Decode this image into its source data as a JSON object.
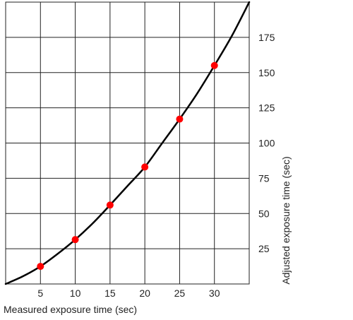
{
  "chart_data": {
    "type": "line",
    "title": "",
    "xlabel": "Measured exposure time (sec)",
    "ylabel": "Adjusted exposure time (sec)",
    "xlim": [
      0,
      35
    ],
    "ylim": [
      0,
      200
    ],
    "x_ticks": [
      5,
      10,
      15,
      20,
      25,
      30
    ],
    "y_ticks": [
      25,
      50,
      75,
      100,
      125,
      150,
      175
    ],
    "grid": true,
    "y_axis_position": "right",
    "series": [
      {
        "type": "curve",
        "color": "#000000",
        "x": [
          0,
          2.5,
          5,
          7.5,
          10,
          12.5,
          15,
          17.5,
          20,
          22.5,
          25,
          27.5,
          30,
          32.5,
          35
        ],
        "y": [
          0,
          5.5,
          12.5,
          21.5,
          31.5,
          43,
          56,
          69.5,
          83,
          100,
          117,
          135,
          155,
          176,
          200
        ]
      },
      {
        "type": "scatter",
        "color": "#ff0000",
        "x": [
          5,
          10,
          15,
          20,
          25,
          30
        ],
        "y": [
          12.5,
          31.5,
          56,
          83,
          117,
          155
        ]
      }
    ]
  }
}
